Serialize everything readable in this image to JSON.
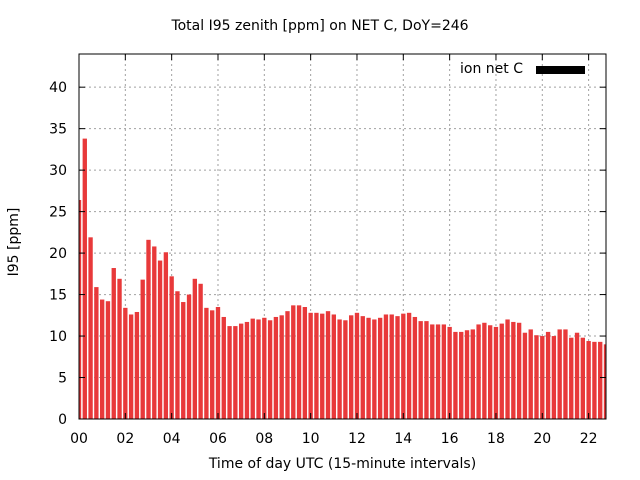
{
  "chart_data": {
    "type": "bar",
    "title": "Total I95 zenith [ppm] on NET C, DoY=246",
    "xlabel": "Time of day UTC (15-minute intervals)",
    "ylabel": "I95 [ppm]",
    "ylim": [
      0,
      44
    ],
    "yticks": [
      "0",
      "5",
      "10",
      "15",
      "20",
      "25",
      "30",
      "35",
      "40"
    ],
    "xticks": [
      "00",
      "02",
      "04",
      "06",
      "08",
      "10",
      "12",
      "14",
      "16",
      "18",
      "20",
      "22"
    ],
    "grid": true,
    "legend_position": "top-right",
    "series": [
      {
        "name": "ion net C",
        "color": "#e8393a",
        "legend_color": "#000000",
        "x_start_hour": 0,
        "x_step_hours": 0.25,
        "values": [
          26.4,
          33.8,
          21.9,
          15.9,
          14.4,
          14.2,
          18.2,
          16.9,
          13.4,
          12.6,
          12.9,
          16.8,
          21.6,
          20.8,
          19.1,
          20.1,
          17.2,
          15.4,
          14.1,
          15.0,
          16.9,
          16.3,
          13.4,
          13.1,
          13.5,
          12.3,
          11.2,
          11.2,
          11.5,
          11.7,
          12.1,
          12.0,
          12.2,
          11.9,
          12.3,
          12.5,
          13.0,
          13.7,
          13.7,
          13.5,
          12.8,
          12.8,
          12.7,
          13.0,
          12.6,
          12.0,
          11.9,
          12.5,
          12.8,
          12.4,
          12.2,
          12.0,
          12.2,
          12.6,
          12.6,
          12.4,
          12.7,
          12.8,
          12.3,
          11.8,
          11.8,
          11.4,
          11.4,
          11.4,
          11.1,
          10.5,
          10.5,
          10.7,
          10.8,
          11.4,
          11.6,
          11.3,
          11.1,
          11.5,
          12.0,
          11.7,
          11.6,
          10.4,
          10.8,
          10.1,
          10.0,
          10.5,
          10.0,
          10.8,
          10.8,
          9.8,
          10.4,
          9.8,
          9.4,
          9.3,
          9.3,
          9.0
        ]
      }
    ]
  }
}
